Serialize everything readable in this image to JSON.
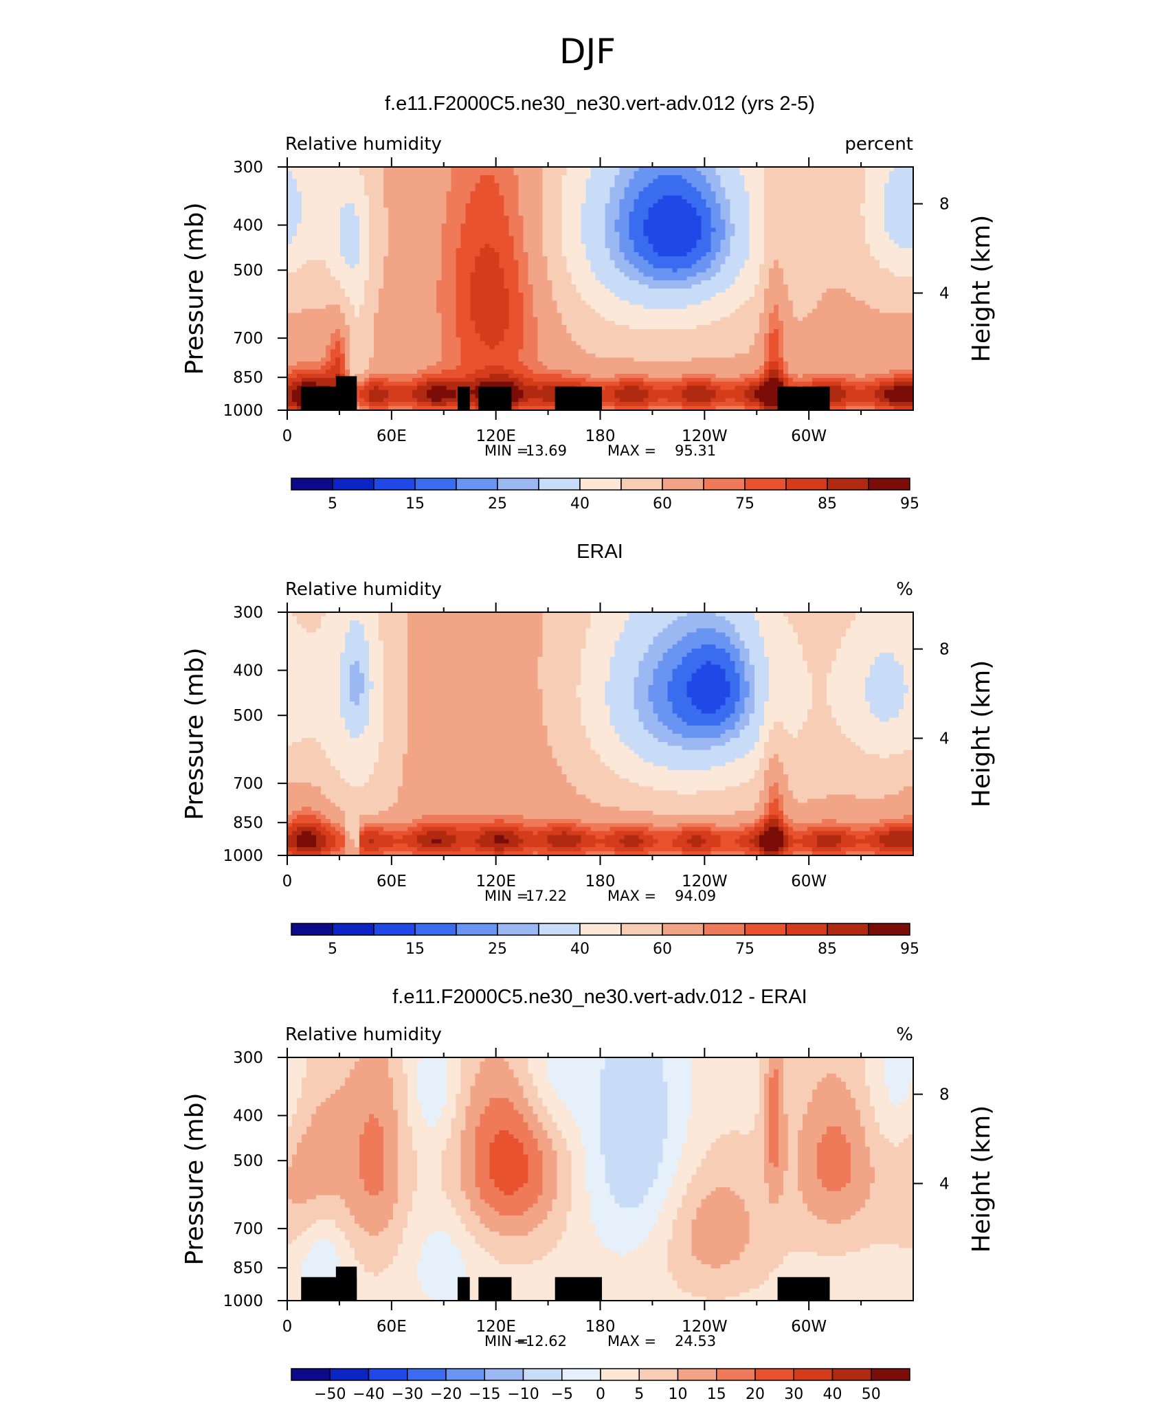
{
  "figure": {
    "season": "DJF"
  },
  "colors": {
    "rh_scale": [
      "#0a0a8a",
      "#0b24c4",
      "#1f48e6",
      "#3a6cf0",
      "#6a94f2",
      "#9bb8f2",
      "#c8dcf7",
      "#fbe8d8",
      "#f8cdb5",
      "#f2a486",
      "#ee7a5a",
      "#e9522e",
      "#d43c1c",
      "#b02a12",
      "#7a0d08"
    ],
    "diff_scale": [
      "#0a0a8a",
      "#0b24c4",
      "#1f48e6",
      "#3a6cf0",
      "#6a94f2",
      "#9bb8f2",
      "#c8dcf7",
      "#e6f0fb",
      "#fbe8d8",
      "#f8cdb5",
      "#f2a486",
      "#ee7a5a",
      "#e9522e",
      "#d43c1c",
      "#b02a12",
      "#7a0d08"
    ],
    "topography": "#000000"
  },
  "chart_data": [
    {
      "type": "heatmap",
      "title": "f.e11.F2000C5.ne30_ne30.vert-adv.012 (yrs 2-5)",
      "left_label": "Relative humidity",
      "right_label": "percent",
      "ylabel": "Pressure (mb)",
      "ylabel_right": "Height (km)",
      "x_ticks": [
        "0",
        "60E",
        "120E",
        "180",
        "120W",
        "60W"
      ],
      "xlim": [
        0,
        360
      ],
      "y_ticks": [
        "300",
        "400",
        "500",
        "700",
        "850",
        "1000"
      ],
      "ylim": [
        1000,
        300
      ],
      "height_ticks": [
        "8",
        "4"
      ],
      "stats": {
        "min_label": "MIN =",
        "min": "13.69",
        "max_label": "MAX =",
        "max": "95.31"
      },
      "colorbar_labels": [
        "5",
        "15",
        "25",
        "40",
        "60",
        "75",
        "85",
        "95"
      ],
      "colorbar_levels": [
        5,
        10,
        15,
        20,
        25,
        30,
        40,
        50,
        60,
        70,
        75,
        80,
        85,
        90,
        95
      ],
      "field": {
        "base": 62,
        "blobs": [
          {
            "lon": 215,
            "p": 400,
            "sx": 40,
            "sy": 170,
            "amp": -44
          },
          {
            "lon": 235,
            "p": 420,
            "sx": 22,
            "sy": 90,
            "amp": -10
          },
          {
            "lon": 355,
            "p": 370,
            "sx": 18,
            "sy": 110,
            "amp": -28
          },
          {
            "lon": 36,
            "p": 420,
            "sx": 10,
            "sy": 110,
            "amp": -22
          },
          {
            "lon": 118,
            "p": 560,
            "sx": 22,
            "sy": 280,
            "amp": 22
          },
          {
            "lon": 15,
            "p": 940,
            "sx": 14,
            "sy": 100,
            "amp": 18
          },
          {
            "lon": 280,
            "p": 780,
            "sx": 5,
            "sy": 260,
            "amp": 18
          },
          {
            "lon": 30,
            "p": 760,
            "sx": 5,
            "sy": 100,
            "amp": 16
          },
          {
            "lon": 40,
            "p": 820,
            "sx": 5,
            "sy": 220,
            "amp": -14
          }
        ],
        "bl": {
          "amp": 28,
          "center": 925,
          "width": 60,
          "lon_range": [
            40,
            360
          ]
        },
        "bl_west": {
          "amp": 18,
          "center": 925,
          "width": 70,
          "lon_range": [
            0,
            35
          ]
        },
        "show_topography": true
      }
    },
    {
      "type": "heatmap",
      "title": "ERAI",
      "left_label": "Relative humidity",
      "right_label": "%",
      "ylabel": "Pressure (mb)",
      "ylabel_right": "Height (km)",
      "x_ticks": [
        "0",
        "60E",
        "120E",
        "180",
        "120W",
        "60W"
      ],
      "xlim": [
        0,
        360
      ],
      "y_ticks": [
        "300",
        "400",
        "500",
        "700",
        "850",
        "1000"
      ],
      "ylim": [
        1000,
        300
      ],
      "height_ticks": [
        "8",
        "4"
      ],
      "stats": {
        "min_label": "MIN =",
        "min": "17.22",
        "max_label": "MAX =",
        "max": "94.09"
      },
      "colorbar_labels": [
        "5",
        "15",
        "25",
        "40",
        "60",
        "75",
        "85",
        "95"
      ],
      "colorbar_levels": [
        5,
        10,
        15,
        20,
        25,
        30,
        40,
        50,
        60,
        70,
        75,
        80,
        85,
        90,
        95
      ],
      "field": {
        "base": 62,
        "blobs": [
          {
            "lon": 230,
            "p": 450,
            "sx": 42,
            "sy": 180,
            "amp": -42
          },
          {
            "lon": 250,
            "p": 430,
            "sx": 15,
            "sy": 90,
            "amp": -12
          },
          {
            "lon": 345,
            "p": 440,
            "sx": 20,
            "sy": 140,
            "amp": -24
          },
          {
            "lon": 40,
            "p": 480,
            "sx": 18,
            "sy": 260,
            "amp": -20
          },
          {
            "lon": 40,
            "p": 420,
            "sx": 6,
            "sy": 80,
            "amp": -16
          },
          {
            "lon": 110,
            "p": 600,
            "sx": 40,
            "sy": 300,
            "amp": 6
          },
          {
            "lon": 280,
            "p": 800,
            "sx": 5,
            "sy": 220,
            "amp": 18
          },
          {
            "lon": 14,
            "p": 890,
            "sx": 12,
            "sy": 120,
            "amp": 14
          }
        ],
        "bl": {
          "amp": 26,
          "center": 930,
          "width": 60,
          "lon_range": [
            42,
            360
          ]
        },
        "bl_west": {
          "amp": 20,
          "center": 930,
          "width": 60,
          "lon_range": [
            0,
            32
          ]
        },
        "show_topography": false
      }
    },
    {
      "type": "heatmap",
      "title": "f.e11.F2000C5.ne30_ne30.vert-adv.012 - ERAI",
      "left_label": "Relative humidity",
      "right_label": "%",
      "ylabel": "Pressure (mb)",
      "ylabel_right": "Height (km)",
      "x_ticks": [
        "0",
        "60E",
        "120E",
        "180",
        "120W",
        "60W"
      ],
      "xlim": [
        0,
        360
      ],
      "y_ticks": [
        "300",
        "400",
        "500",
        "700",
        "850",
        "1000"
      ],
      "ylim": [
        1000,
        300
      ],
      "height_ticks": [
        "8",
        "4"
      ],
      "stats": {
        "min_label": "MIN =",
        "min": "−12.62",
        "max_label": "MAX =",
        "max": "24.53"
      },
      "colorbar_labels": [
        "−50",
        "−40",
        "−30",
        "−20",
        "−15",
        "−10",
        "−5",
        "0",
        "5",
        "10",
        "15",
        "20",
        "30",
        "40",
        "50"
      ],
      "colorbar_levels": [
        -50,
        -40,
        -30,
        -20,
        -15,
        -10,
        -5,
        0,
        5,
        10,
        15,
        20,
        30,
        40,
        50
      ],
      "field": {
        "base": 3,
        "blobs": [
          {
            "lon": 128,
            "p": 500,
            "sx": 22,
            "sy": 160,
            "amp": 20
          },
          {
            "lon": 15,
            "p": 500,
            "sx": 18,
            "sy": 180,
            "amp": 12
          },
          {
            "lon": 52,
            "p": 500,
            "sx": 12,
            "sy": 200,
            "amp": 12
          },
          {
            "lon": 315,
            "p": 500,
            "sx": 18,
            "sy": 150,
            "amp": 14
          },
          {
            "lon": 200,
            "p": 450,
            "sx": 22,
            "sy": 220,
            "amp": -13
          },
          {
            "lon": 245,
            "p": 700,
            "sx": 22,
            "sy": 160,
            "amp": 11
          },
          {
            "lon": 280,
            "p": 400,
            "sx": 4,
            "sy": 120,
            "amp": 14
          },
          {
            "lon": 150,
            "p": 330,
            "sx": 15,
            "sy": 80,
            "amp": -9
          },
          {
            "lon": 355,
            "p": 350,
            "sx": 15,
            "sy": 100,
            "amp": -9
          },
          {
            "lon": 85,
            "p": 350,
            "sx": 10,
            "sy": 80,
            "amp": -8
          },
          {
            "lon": 20,
            "p": 820,
            "sx": 10,
            "sy": 160,
            "amp": -9
          },
          {
            "lon": 90,
            "p": 820,
            "sx": 14,
            "sy": 160,
            "amp": -6
          }
        ],
        "bl": {
          "amp": 0,
          "center": 925,
          "width": 60,
          "lon_range": [
            0,
            0
          ]
        },
        "bl_west": {
          "amp": 0,
          "center": 925,
          "width": 60,
          "lon_range": [
            0,
            0
          ]
        },
        "show_topography": true
      }
    }
  ]
}
